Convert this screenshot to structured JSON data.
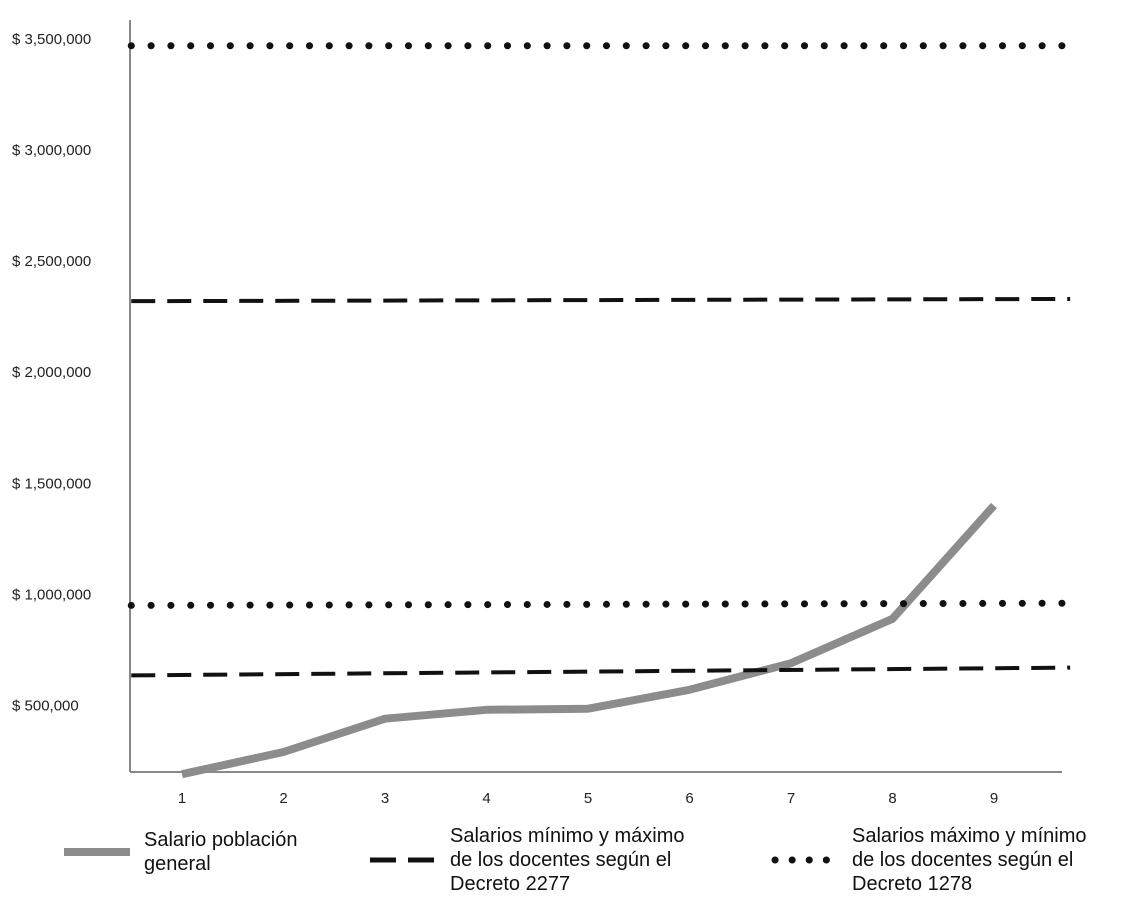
{
  "chart_data": {
    "type": "line",
    "title": "",
    "xlabel": "",
    "ylabel": "",
    "x": [
      1,
      2,
      3,
      4,
      5,
      6,
      7,
      8,
      9
    ],
    "x_tick_labels": [
      "1",
      "2",
      "3",
      "4",
      "5",
      "6",
      "7",
      "8",
      "9"
    ],
    "ylim": [
      200000,
      3550000
    ],
    "y_ticks": [
      500000,
      1000000,
      1500000,
      2000000,
      2500000,
      3000000,
      3500000
    ],
    "y_tick_labels": [
      "$ 500,000",
      "$ 1,000,000",
      "$ 1,500,000",
      "$ 2,000,000",
      "$ 2,500,000",
      "$ 3,000,000",
      "$ 3,500,000"
    ],
    "grid": false,
    "legend_position": "bottom",
    "series": [
      {
        "name": "Salario población general",
        "style": "solid",
        "color": "#8c8c8c",
        "x": [
          1,
          2,
          3,
          4,
          5,
          6,
          7,
          8,
          9
        ],
        "values": [
          190000,
          290000,
          440000,
          480000,
          485000,
          570000,
          690000,
          890000,
          1400000
        ]
      },
      {
        "name": "Salarios mínimo y máximo de los docentes según el Decreto 2277",
        "style": "dashed",
        "color": "#111111",
        "lines": [
          {
            "x": [
              0.5,
              9.75
            ],
            "values": [
              635000,
              670000
            ]
          },
          {
            "x": [
              0.5,
              9.75
            ],
            "values": [
              2320000,
              2330000
            ]
          }
        ]
      },
      {
        "name": "Salarios máximo y mínimo de los docentes según el Decreto 1278",
        "style": "dotted",
        "color": "#111111",
        "lines": [
          {
            "x": [
              0.5,
              9.75
            ],
            "values": [
              950000,
              960000
            ]
          },
          {
            "x": [
              0.5,
              9.75
            ],
            "values": [
              3470000,
              3470000
            ]
          }
        ]
      }
    ]
  },
  "legend": [
    {
      "label": "Salario población\ngeneral"
    },
    {
      "label": "Salarios mínimo  y máximo\nde los docentes según el\nDecreto 2277"
    },
    {
      "label": "Salarios máximo  y mínimo\nde los docentes según el\nDecreto 1278"
    }
  ]
}
